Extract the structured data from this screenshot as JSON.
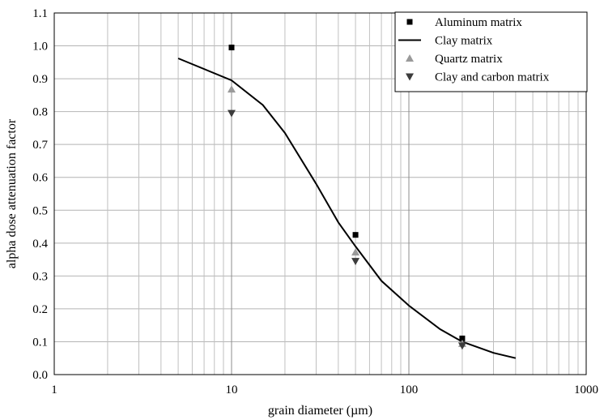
{
  "chart_data": {
    "type": "scatter",
    "xscale": "log",
    "xlim": [
      1,
      1000
    ],
    "ylim": [
      0,
      1.1
    ],
    "xlabel": "grain diameter (µm)",
    "ylabel": "alpha dose attenuation factor",
    "x_ticks": [
      "1",
      "10",
      "100",
      "1000"
    ],
    "y_ticks": [
      "0.0",
      "0.1",
      "0.2",
      "0.3",
      "0.4",
      "0.5",
      "0.6",
      "0.7",
      "0.8",
      "0.9",
      "1.0",
      "1.1"
    ],
    "grid": true,
    "legend_position": "top-right",
    "series": [
      {
        "name": "Aluminum matrix",
        "kind": "points",
        "marker": "square",
        "color": "#000000",
        "points": [
          [
            10,
            0.995
          ],
          [
            50,
            0.425
          ],
          [
            200,
            0.11
          ]
        ]
      },
      {
        "name": "Clay matrix",
        "kind": "line",
        "color": "#000000",
        "points": [
          [
            5,
            0.962
          ],
          [
            10,
            0.895
          ],
          [
            15,
            0.82
          ],
          [
            20,
            0.735
          ],
          [
            30,
            0.58
          ],
          [
            40,
            0.463
          ],
          [
            50,
            0.39
          ],
          [
            70,
            0.285
          ],
          [
            100,
            0.21
          ],
          [
            150,
            0.138
          ],
          [
            200,
            0.1
          ],
          [
            300,
            0.066
          ],
          [
            400,
            0.05
          ]
        ]
      },
      {
        "name": "Quartz matrix",
        "kind": "points",
        "marker": "triangle-up",
        "color": "#9a9a9a",
        "points": [
          [
            10,
            0.868
          ],
          [
            50,
            0.372
          ],
          [
            200,
            0.094
          ]
        ]
      },
      {
        "name": "Clay and carbon matrix",
        "kind": "points",
        "marker": "triangle-down",
        "color": "#3c3c3c",
        "points": [
          [
            10,
            0.795
          ],
          [
            50,
            0.345
          ],
          [
            200,
            0.088
          ]
        ]
      }
    ]
  }
}
